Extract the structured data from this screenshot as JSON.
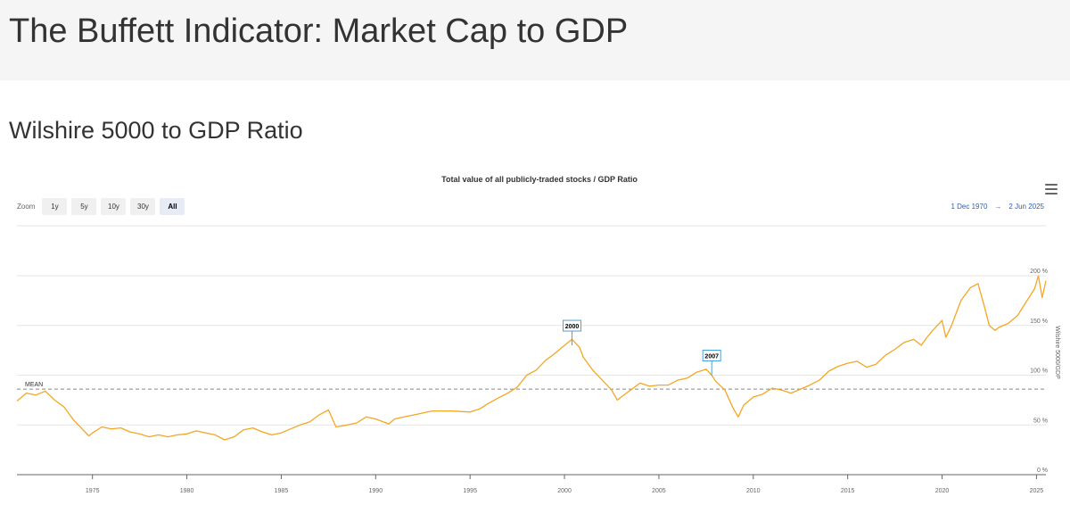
{
  "page": {
    "title": "The Buffett Indicator: Market Cap to GDP"
  },
  "section": {
    "title": "Wilshire 5000 to GDP Ratio"
  },
  "toolbar": {
    "zoom_label": "Zoom",
    "buttons": [
      "1y",
      "5y",
      "10y",
      "30y",
      "All"
    ],
    "active_button": "All",
    "range_from": "1 Dec 1970",
    "range_arrow": "→",
    "range_to": "2 Jun 2025",
    "menu_icon": "hamburger-menu-icon"
  },
  "chart_data": {
    "type": "line",
    "title": "Total value of all publicly-traded stocks / GDP Ratio",
    "ylabel": "Wilshire 5000/GDP",
    "xlim": [
      1971.0,
      2025.5
    ],
    "ylim": [
      0,
      200
    ],
    "x_ticks": [
      "1975",
      "1980",
      "1985",
      "1990",
      "1995",
      "2000",
      "2005",
      "2010",
      "2015",
      "2020",
      "2025"
    ],
    "y_ticks": [
      "0 %",
      "50 %",
      "100 %",
      "150 %",
      "200 %"
    ],
    "grid": true,
    "line_color": "#f5a623",
    "mean": {
      "label": "MEAN",
      "value": 86
    },
    "flags": [
      {
        "label": "2000",
        "x": 2000.4,
        "y": 130
      },
      {
        "label": "2007",
        "x": 2007.8,
        "y": 100
      }
    ],
    "series": [
      {
        "x": [
          1971.0,
          1971.5,
          1972.0,
          1972.5,
          1973.0,
          1973.5,
          1974.0,
          1974.5,
          1974.8,
          1975.0,
          1975.5,
          1976.0,
          1976.5,
          1977.0,
          1977.5,
          1978.0,
          1978.5,
          1979.0,
          1979.5,
          1980.0,
          1980.5,
          1981.0,
          1981.5,
          1982.0,
          1982.5,
          1983.0,
          1983.5,
          1984.0,
          1984.5,
          1985.0,
          1985.5,
          1986.0,
          1986.5,
          1987.0,
          1987.5,
          1987.9,
          1988.5,
          1989.0,
          1989.5,
          1990.0,
          1990.7,
          1991.0,
          1991.5,
          1992.0,
          1993.0,
          1994.0,
          1995.0,
          1995.5,
          1996.0,
          1996.5,
          1997.0,
          1997.5,
          1998.0,
          1998.5,
          1999.0,
          1999.5,
          2000.0,
          2000.4,
          2000.8,
          2001.0,
          2001.5,
          2002.0,
          2002.5,
          2002.8,
          2003.0,
          2003.5,
          2004.0,
          2004.5,
          2005.0,
          2005.5,
          2006.0,
          2006.5,
          2007.0,
          2007.5,
          2007.8,
          2008.0,
          2008.5,
          2008.9,
          2009.2,
          2009.5,
          2010.0,
          2010.5,
          2011.0,
          2011.5,
          2012.0,
          2012.5,
          2013.0,
          2013.5,
          2014.0,
          2014.5,
          2015.0,
          2015.5,
          2016.0,
          2016.5,
          2017.0,
          2017.5,
          2018.0,
          2018.5,
          2018.9,
          2019.2,
          2019.5,
          2020.0,
          2020.2,
          2020.5,
          2021.0,
          2021.5,
          2021.9,
          2022.2,
          2022.5,
          2022.8,
          2023.0,
          2023.5,
          2024.0,
          2024.5,
          2024.9,
          2025.1,
          2025.3,
          2025.5
        ],
        "y": [
          74,
          82,
          80,
          84,
          75,
          68,
          55,
          45,
          39,
          42,
          48,
          46,
          47,
          43,
          41,
          38,
          40,
          38,
          40,
          41,
          44,
          42,
          40,
          35,
          38,
          45,
          47,
          43,
          40,
          42,
          46,
          50,
          53,
          60,
          65,
          48,
          50,
          52,
          58,
          56,
          51,
          56,
          58,
          60,
          64,
          64,
          63,
          66,
          72,
          77,
          82,
          88,
          100,
          105,
          115,
          122,
          130,
          136,
          128,
          118,
          105,
          95,
          85,
          75,
          78,
          85,
          92,
          89,
          90,
          90,
          95,
          97,
          103,
          106,
          100,
          94,
          85,
          68,
          58,
          70,
          78,
          81,
          87,
          85,
          82,
          86,
          90,
          95,
          104,
          109,
          112,
          114,
          108,
          111,
          120,
          126,
          133,
          136,
          130,
          138,
          145,
          155,
          138,
          150,
          175,
          188,
          192,
          172,
          150,
          145,
          148,
          152,
          160,
          175,
          187,
          200,
          178,
          195
        ]
      }
    ]
  }
}
